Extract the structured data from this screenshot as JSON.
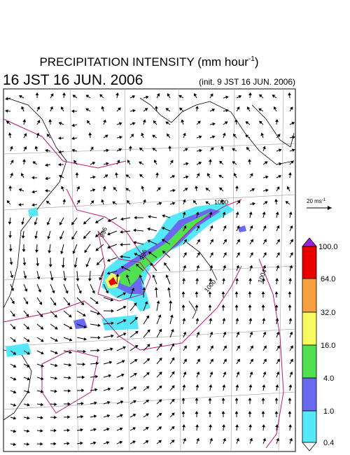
{
  "header": {
    "title": "PRECIPITATION INTENSITY (mm hour",
    "title_sup": "-1",
    "title_end": ")",
    "valid_time": "16 JST 16 JUN. 2006",
    "init_time": "(init. 9 JST 16 JUN. 2006)"
  },
  "wind_scale": {
    "label": "20 ms",
    "label_sup": "-1"
  },
  "contours": {
    "labels": [
      "1000",
      "996",
      "996",
      "1000",
      "1004"
    ]
  },
  "colorbar": {
    "labels": [
      "100.0",
      "64.0",
      "32.0",
      "16.0",
      "4.0",
      "1.0",
      "0.4"
    ]
  }
}
